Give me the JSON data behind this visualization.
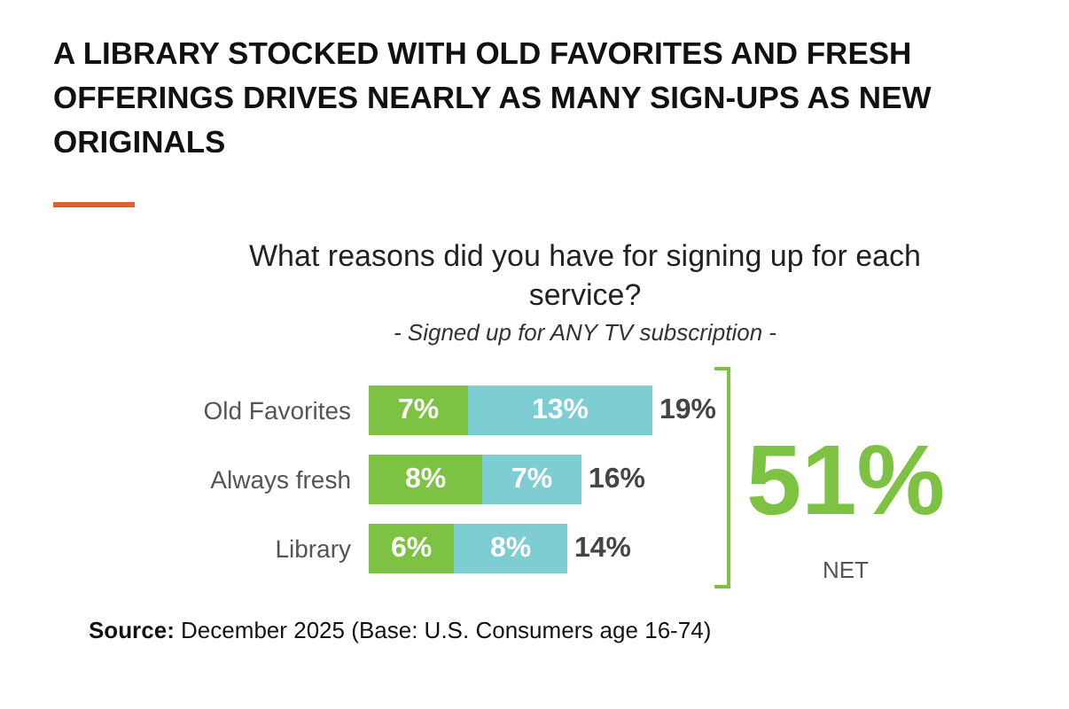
{
  "chart_data": {
    "type": "bar",
    "orientation": "horizontal",
    "stacked": true,
    "title": "A LIBRARY STOCKED WITH OLD FAVORITES AND FRESH OFFERINGS DRIVES NEARLY AS MANY SIGN-UPS AS NEW ORIGINALS",
    "subtitle": "What reasons did you have for signing up for each service?",
    "categories": [
      "Old Favorites",
      "Always fresh",
      "Library"
    ],
    "series": [
      {
        "color": "#7dc242",
        "values": [
          7,
          8,
          6
        ],
        "value_labels": [
          "7%",
          "8%",
          "6%"
        ]
      },
      {
        "color": "#7ecdd2",
        "values": [
          13,
          7,
          8
        ],
        "value_labels": [
          "13%",
          "7%",
          "8%"
        ]
      }
    ],
    "totals": [
      "19%",
      "16%",
      "14%"
    ],
    "tick_labels": "y",
    "annotations": [
      "- Signed up for ANY TV subscription -",
      "51%",
      "NET",
      "Source: December 2025 (Base: U.S. Consumers age 16-74)"
    ]
  }
}
